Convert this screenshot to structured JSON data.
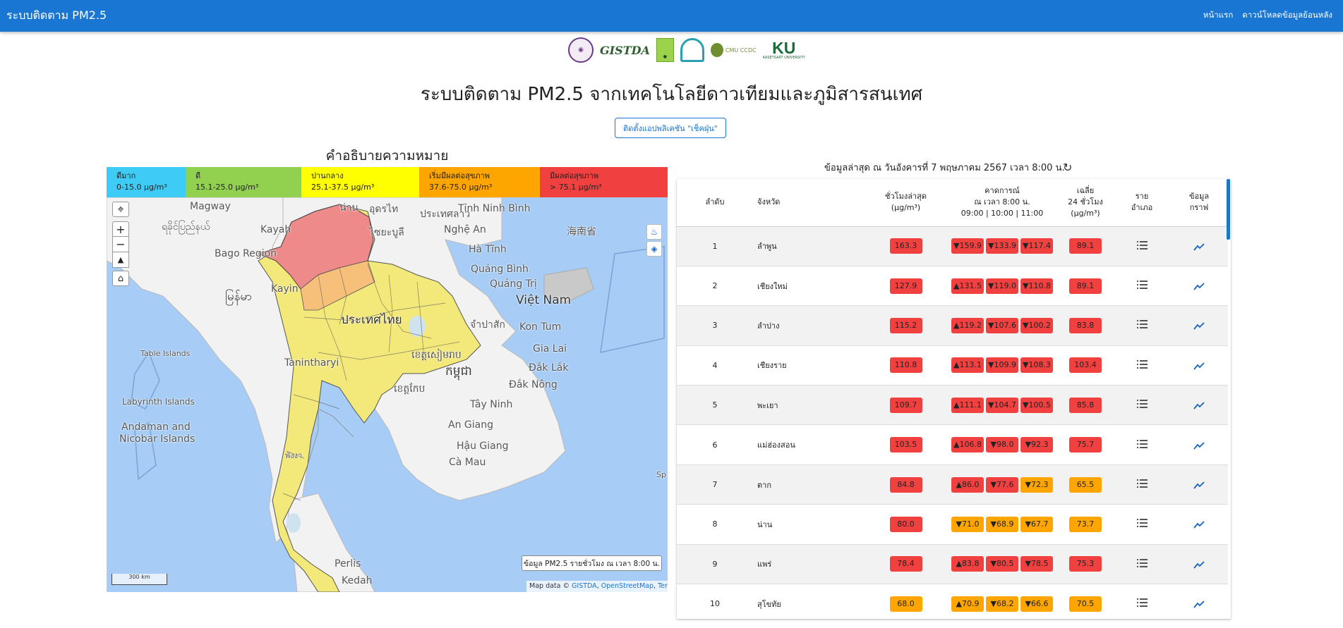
{
  "navbar": {
    "brand": "ระบบติดตาม PM2.5",
    "links": [
      "หน้าแรก",
      "ดาวน์โหลดข้อมูลย้อนหลัง"
    ]
  },
  "logos": {
    "gistda": "GISTDA",
    "cmu": "CMU CCDC",
    "ku": "KU",
    "ku_sub": "KASETSART UNIVERSITY"
  },
  "main_title": "ระบบติดตาม PM2.5 จากเทคโนโลยีดาวเทียมและภูมิสารสนเทศ",
  "install_button": "ติดตั้งแอปพลิเคชัน \"เช็คฝุ่น\"",
  "legend": {
    "title": "คำอธิบายความหมาย",
    "items": [
      {
        "label": "ดีมาก",
        "range": "0-15.0 µg/m³",
        "color": "#3ecbf5"
      },
      {
        "label": "ดี",
        "range": "15.1-25.0 µg/m³",
        "color": "#92d050"
      },
      {
        "label": "ปานกลาง",
        "range": "25.1-37.5 µg/m³",
        "color": "#ffff00"
      },
      {
        "label": "เริ่มมีผลต่อสุขภาพ",
        "range": "37.6-75.0 µg/m³",
        "color": "#ffa500"
      },
      {
        "label": "มีผลต่อสุขภาพ",
        "range": "> 75.1 µg/m³",
        "color": "#f04040"
      }
    ]
  },
  "map": {
    "labels": {
      "magway": "Magway",
      "myanmar": "ရခိုင်ပြည်နယ်",
      "kayah": "Kayah",
      "bago": "Bago Region",
      "myanmar2": "မြန်မာ",
      "kayin": "Kayin",
      "nan": "น่าน",
      "udon": "อุดรไท",
      "laos": "ประเทศลาว",
      "sayaboury": "ไซยะบูลี",
      "tinh_binh": "Tỉnh Ninh Bình",
      "nghe_an": "Nghệ An",
      "hainan": "海南省",
      "ha_tinh": "Hà Tĩnh",
      "quang_binh": "Quảng Bình",
      "quang_tri": "Quảng Trị",
      "viet_nam": "Việt Nam",
      "thailand": "ประเทศไทย",
      "champasak": "จำปาสัก",
      "kon_tum": "Kon Tum",
      "gia_lai": "Gia Lai",
      "table_islands": "Table Islands",
      "tanintharyi": "Tanintharyi",
      "cambodia_prov": "ខេត្តសៀមរាប",
      "cambodia": "កម្ពុជា",
      "dak_lak": "Đắk Lắk",
      "dak_nong": "Đắk Nông",
      "kep": "ខេត្តកែប",
      "labyrinth": "Labyrinth Islands",
      "tay_ninh": "Tây Ninh",
      "andaman": "Andaman and",
      "nicobar": "Nicobar Islands",
      "an_giang": "An Giang",
      "hau_giang": "Hậu Giang",
      "ca_mau": "Cà Mau",
      "phang_nga": "พังงา",
      "perlis": "Perlis",
      "kedah": "Kedah",
      "sp": "Sp"
    },
    "info_box": "ข้อมูล PM2.5 รายชั่วโมง ณ เวลา 8:00 น.",
    "scale": "300 km",
    "attribution_prefix": "Map data ©",
    "attribution_links": [
      "GISTDA",
      "OpenStreetMap",
      "Terms"
    ]
  },
  "latest": "ข้อมูลล่าสุด ณ วันอังคารที่ 7 พฤษภาคม 2567 เวลา 8:00 น.",
  "table": {
    "headers": {
      "rank": "ลำดับ",
      "province": "จังหวัด",
      "hourly_1": "ชั่วโมงล่าสุด",
      "hourly_2": "(µg/m³)",
      "forecast_1": "คาดการณ์",
      "forecast_2": "ณ เวลา 8:00 น.",
      "forecast_3": "09:00 | 10:00 | 11:00",
      "avg_1": "เฉลี่ย",
      "avg_2": "24 ชั่วโมง",
      "avg_3": "(µg/m³)",
      "district_1": "ราย",
      "district_2": "อำเภอ",
      "graph_1": "ข้อมูล",
      "graph_2": "กราฟ"
    },
    "rows": [
      {
        "rank": "1",
        "province": "ลำพูน",
        "latest": "163.3",
        "f1": "▼159.9",
        "f2": "▼133.9",
        "f3": "▼117.4",
        "avg": "89.1"
      },
      {
        "rank": "2",
        "province": "เชียงใหม่",
        "latest": "127.9",
        "f1": "▲131.5",
        "f2": "▼119.0",
        "f3": "▼110.8",
        "avg": "89.1"
      },
      {
        "rank": "3",
        "province": "ลำปาง",
        "latest": "115.2",
        "f1": "▲119.2",
        "f2": "▼107.6",
        "f3": "▼100.2",
        "avg": "83.8"
      },
      {
        "rank": "4",
        "province": "เชียงราย",
        "latest": "110.8",
        "f1": "▲113.1",
        "f2": "▼109.9",
        "f3": "▼108.3",
        "avg": "103.4"
      },
      {
        "rank": "5",
        "province": "พะเยา",
        "latest": "109.7",
        "f1": "▲111.1",
        "f2": "▼104.7",
        "f3": "▼100.5",
        "avg": "85.8"
      },
      {
        "rank": "6",
        "province": "แม่ฮ่องสอน",
        "latest": "103.5",
        "f1": "▲106.8",
        "f2": "▼98.0",
        "f3": "▼92.3",
        "avg": "75.7"
      },
      {
        "rank": "7",
        "province": "ตาก",
        "latest": "84.8",
        "f1": "▲86.0",
        "f2": "▼77.6",
        "f3": "▼72.3",
        "avg": "65.5"
      },
      {
        "rank": "8",
        "province": "น่าน",
        "latest": "80.0",
        "f1": "▼71.0",
        "f2": "▼68.9",
        "f3": "▼67.7",
        "avg": "73.7"
      },
      {
        "rank": "9",
        "province": "แพร่",
        "latest": "78.4",
        "f1": "▲83.8",
        "f2": "▼80.5",
        "f3": "▼78.5",
        "avg": "75.3"
      },
      {
        "rank": "10",
        "province": "สุโขทัย",
        "latest": "68.0",
        "f1": "▲70.9",
        "f2": "▼68.2",
        "f3": "▼66.6",
        "avg": "70.5"
      }
    ]
  },
  "colors": {
    "nav": "#1976d2",
    "red": "#f04040",
    "orange": "#ffa500"
  }
}
